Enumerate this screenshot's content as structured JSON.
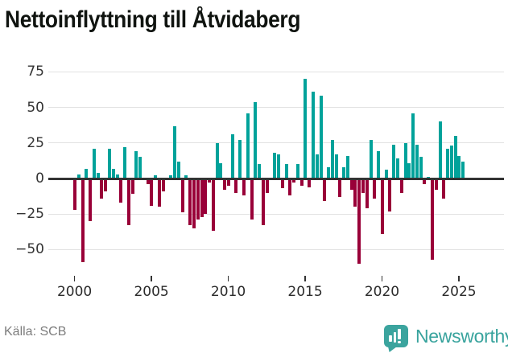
{
  "title": "Nettoinflyttning till Åtvidaberg",
  "source": "Källa: SCB",
  "brand": {
    "name": "Newsworthy",
    "icon": "bar-chart-badge-icon",
    "color": "#3BA49E"
  },
  "colors": {
    "positive": "#00A29A",
    "negative": "#990038",
    "grid": "#E2E2E2",
    "zero_line": "#333333",
    "axis_text": "#333333"
  },
  "chart_data": {
    "type": "bar",
    "title": "Nettoinflyttning till Åtvidaberg",
    "ylabel": "",
    "xlabel": "",
    "legend": "none",
    "grid": "horizontal",
    "frequency": "quarterly",
    "start_year": 2000,
    "start_quarter": 1,
    "end_label": "2025-Q2",
    "x_ticks": [
      2000,
      2005,
      2010,
      2015,
      2020,
      2025
    ],
    "y_ticks": [
      75,
      50,
      25,
      0,
      -25,
      -50
    ],
    "ylim": [
      -78,
      80
    ],
    "series": [
      {
        "name": "Nettoinflyttning",
        "values": [
          -22,
          3,
          -59,
          7,
          -30,
          21,
          4,
          -14,
          -9,
          21,
          7,
          3,
          -17,
          22,
          -33,
          -11,
          19,
          15,
          0,
          -4,
          -19,
          2,
          -20,
          -9,
          0,
          2,
          37,
          12,
          -24,
          2,
          -33,
          -35,
          -29,
          -27,
          -25,
          -3,
          -37,
          25,
          11,
          -8,
          -5,
          31,
          -10,
          27,
          -12,
          46,
          -29,
          54,
          10,
          -33,
          -10,
          0,
          18,
          17,
          -7,
          10,
          -12,
          -3,
          10,
          -5,
          70,
          -6,
          61,
          17,
          58,
          -16,
          8,
          27,
          17,
          -13,
          8,
          16,
          -8,
          -20,
          -60,
          -10,
          -21,
          27,
          -14,
          19,
          -39,
          6,
          -23,
          24,
          14,
          -10,
          25,
          11,
          46,
          24,
          15,
          -4,
          1,
          -57,
          -8,
          40,
          -14,
          21,
          23,
          30,
          16,
          12
        ]
      }
    ]
  }
}
